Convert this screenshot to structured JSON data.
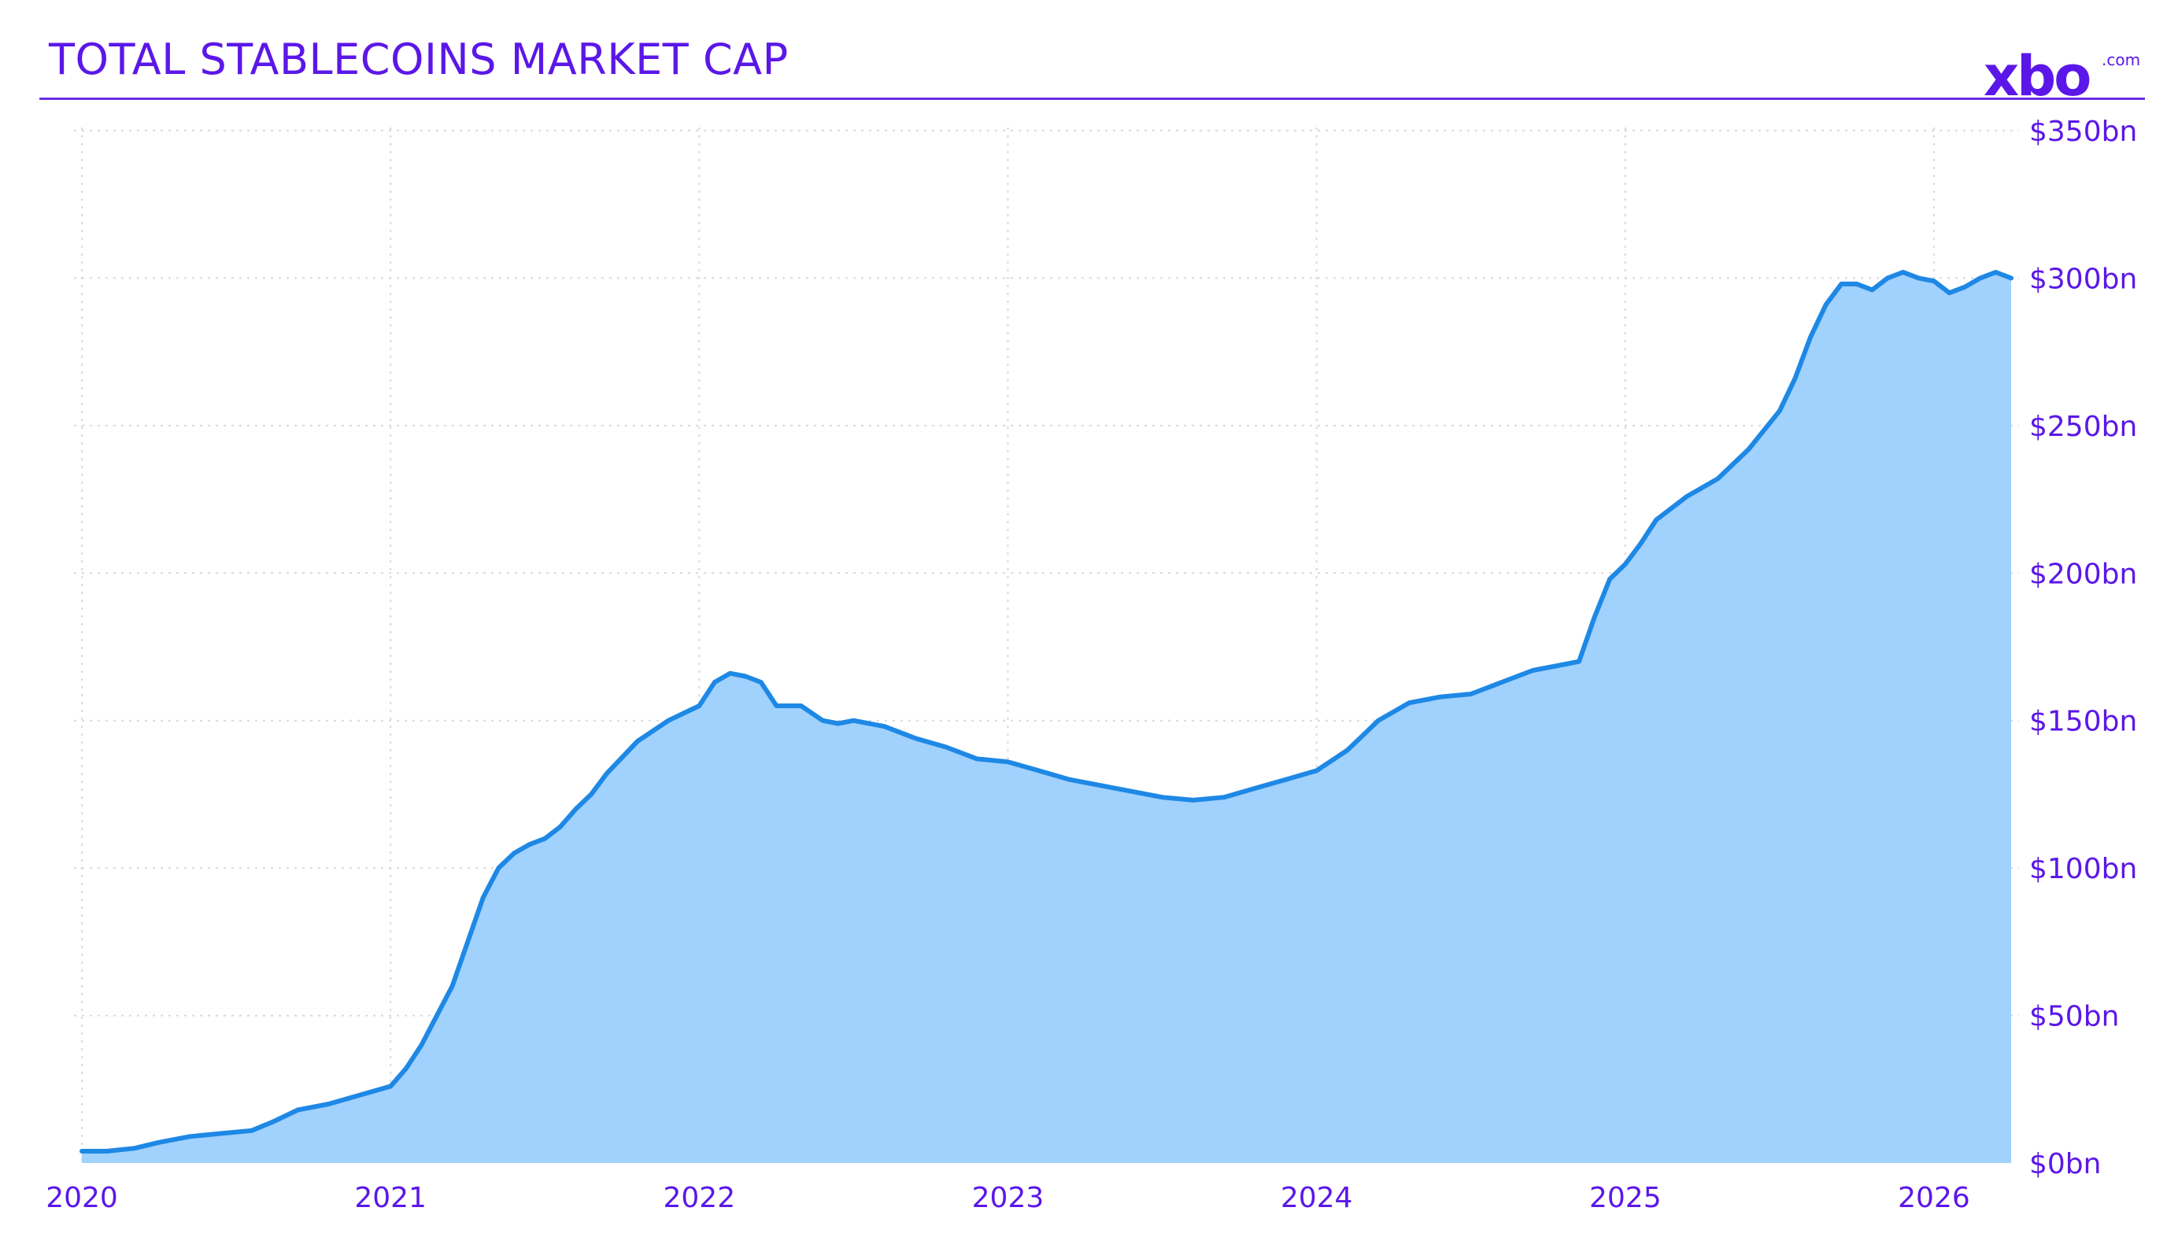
{
  "header": {
    "title": "TOTAL STABLECOINS MARKET CAP",
    "logo_text": "xbo",
    "logo_suffix": ".com"
  },
  "colors": {
    "accent": "#5b17e8",
    "line": "#1e88e5",
    "fill": "#a1d1fd",
    "grid": "#d9d9d9"
  },
  "chart_data": {
    "type": "area",
    "title": "TOTAL STABLECOINS MARKET CAP",
    "xlabel": "",
    "ylabel": "",
    "x_ticks": [
      "2020",
      "2021",
      "2022",
      "2023",
      "2024",
      "2025",
      "2026"
    ],
    "y_ticks": [
      "$0bn",
      "$50bn",
      "$100bn",
      "$150bn",
      "$200bn",
      "$250bn",
      "$300bn",
      "$350bn"
    ],
    "xlim": [
      2020.0,
      2026.25
    ],
    "ylim": [
      0,
      350
    ],
    "y_unit": "$bn",
    "grid": true,
    "y_axis_side": "right",
    "series": [
      {
        "x": [
          2020.0,
          2020.08,
          2020.17,
          2020.25,
          2020.35,
          2020.45,
          2020.55,
          2020.62,
          2020.7,
          2020.8,
          2020.9,
          2021.0,
          2021.05,
          2021.1,
          2021.15,
          2021.2,
          2021.25,
          2021.3,
          2021.35,
          2021.4,
          2021.45,
          2021.5,
          2021.55,
          2021.6,
          2021.65,
          2021.7,
          2021.8,
          2021.9,
          2022.0,
          2022.05,
          2022.1,
          2022.15,
          2022.2,
          2022.25,
          2022.33,
          2022.4,
          2022.45,
          2022.5,
          2022.6,
          2022.7,
          2022.8,
          2022.9,
          2023.0,
          2023.1,
          2023.2,
          2023.3,
          2023.4,
          2023.5,
          2023.6,
          2023.7,
          2023.8,
          2023.9,
          2024.0,
          2024.1,
          2024.15,
          2024.2,
          2024.3,
          2024.4,
          2024.5,
          2024.6,
          2024.7,
          2024.8,
          2024.85,
          2024.9,
          2024.95,
          2025.0,
          2025.05,
          2025.1,
          2025.2,
          2025.3,
          2025.4,
          2025.5,
          2025.55,
          2025.6,
          2025.65,
          2025.7,
          2025.75,
          2025.8,
          2025.85,
          2025.9,
          2025.95,
          2026.0,
          2026.05,
          2026.1,
          2026.15,
          2026.2,
          2026.25
        ],
        "values": [
          4,
          4,
          5,
          7,
          9,
          10,
          11,
          14,
          18,
          20,
          23,
          26,
          32,
          40,
          50,
          60,
          75,
          90,
          100,
          105,
          108,
          110,
          114,
          120,
          125,
          132,
          143,
          150,
          155,
          163,
          166,
          165,
          163,
          155,
          155,
          150,
          149,
          150,
          148,
          144,
          141,
          137,
          136,
          133,
          130,
          128,
          126,
          124,
          123,
          124,
          127,
          130,
          133,
          140,
          145,
          150,
          156,
          158,
          159,
          163,
          167,
          169,
          170,
          185,
          198,
          203,
          210,
          218,
          226,
          232,
          242,
          255,
          266,
          280,
          291,
          298,
          298,
          296,
          300,
          302,
          300,
          299,
          295,
          297,
          300,
          302,
          300
        ]
      }
    ]
  }
}
